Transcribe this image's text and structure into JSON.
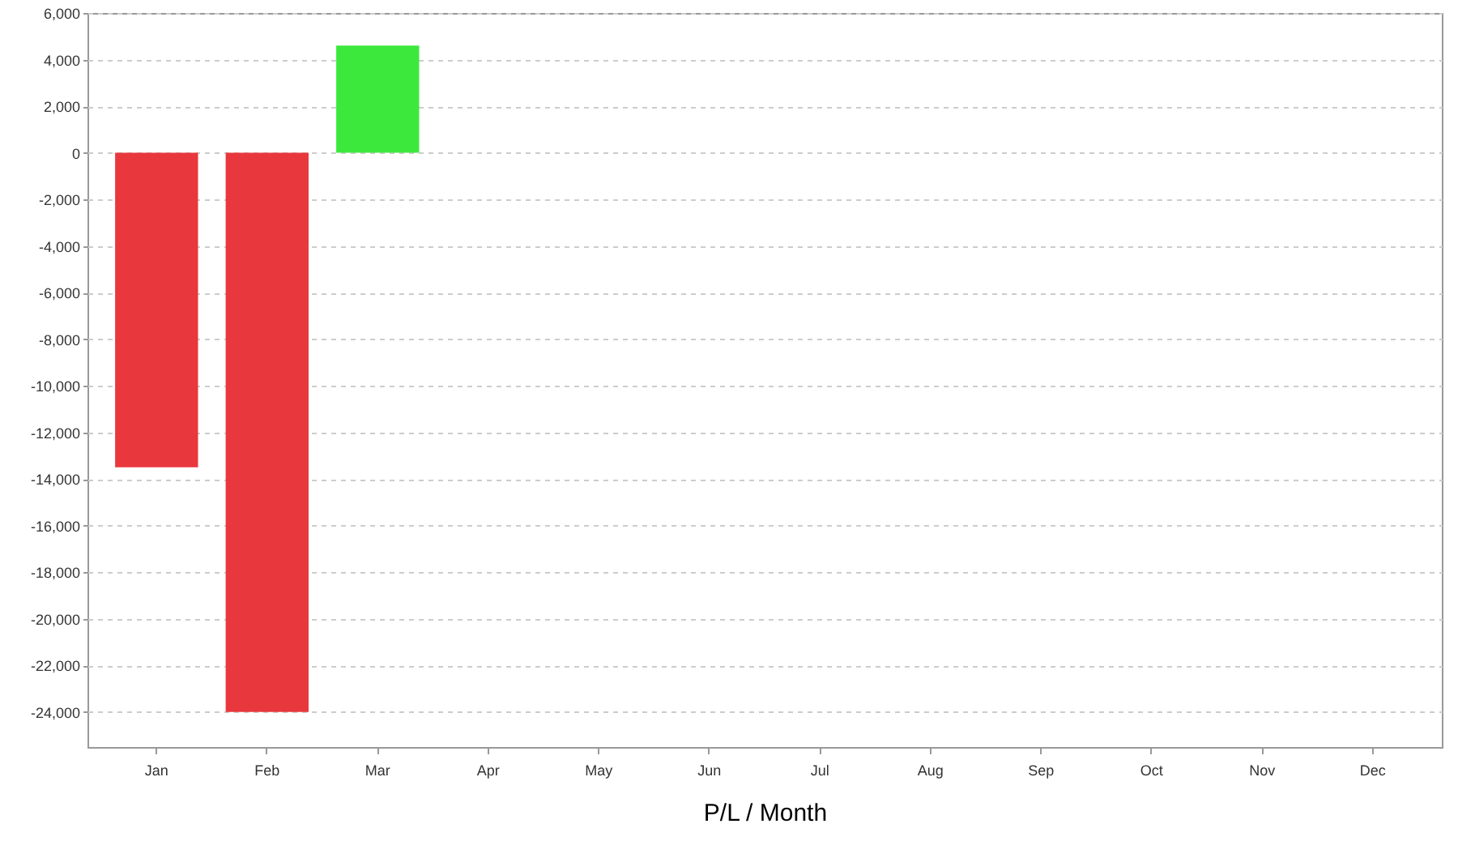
{
  "chart_data": {
    "type": "bar",
    "xlabel": "P/L / Month",
    "categories": [
      "Jan",
      "Feb",
      "Mar",
      "Apr",
      "May",
      "Jun",
      "Jul",
      "Aug",
      "Sep",
      "Oct",
      "Nov",
      "Dec"
    ],
    "values": [
      -13500,
      -24000,
      4600,
      null,
      null,
      null,
      null,
      null,
      null,
      null,
      null,
      null
    ],
    "colors": [
      "#e8383d",
      "#e8383d",
      "#3de83d",
      null,
      null,
      null,
      null,
      null,
      null,
      null,
      null,
      null
    ],
    "ylim": [
      -25500,
      6000
    ],
    "yticks": [
      {
        "value": -24000,
        "label": "-24,000"
      },
      {
        "value": -22000,
        "label": "-22,000"
      },
      {
        "value": -20000,
        "label": "-20,000"
      },
      {
        "value": -18000,
        "label": "-18,000"
      },
      {
        "value": -16000,
        "label": "-16,000"
      },
      {
        "value": -14000,
        "label": "-14,000"
      },
      {
        "value": -12000,
        "label": "-12,000"
      },
      {
        "value": -10000,
        "label": "-10,000"
      },
      {
        "value": -8000,
        "label": "-8,000"
      },
      {
        "value": -6000,
        "label": "-6,000"
      },
      {
        "value": -4000,
        "label": "-4,000"
      },
      {
        "value": -2000,
        "label": "-2,000"
      },
      0,
      {
        "value": 2000,
        "label": "2,000"
      },
      {
        "value": 4000,
        "label": "4,000"
      },
      {
        "value": 6000,
        "label": "6,000"
      }
    ],
    "grid": "y"
  }
}
